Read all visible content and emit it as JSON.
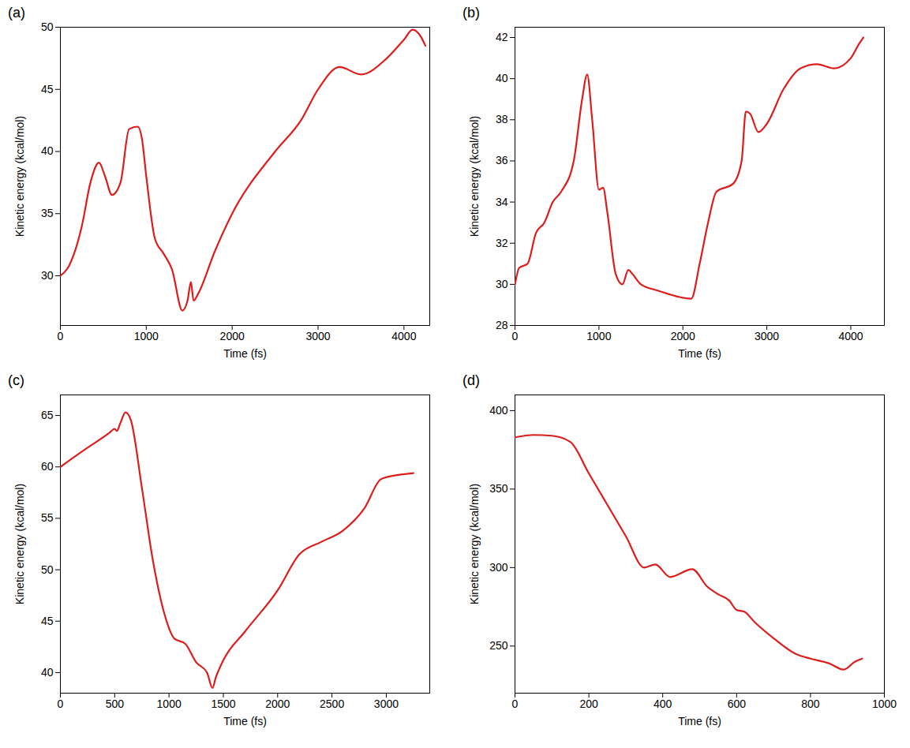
{
  "chart_data": [
    {
      "type": "line",
      "title": "(a)",
      "x_label": "Time (fs)",
      "y_label": "Kinetic energy (kcal/mol)",
      "color": "#dd1c1c",
      "x": [
        0,
        100,
        250,
        350,
        450,
        520,
        600,
        700,
        800,
        900,
        950,
        1000,
        1100,
        1200,
        1300,
        1420,
        1480,
        1520,
        1550,
        1600,
        1800,
        2000,
        2500,
        2800,
        3000,
        3250,
        3500,
        3800,
        4000,
        4100,
        4200,
        4250
      ],
      "values": [
        30,
        30.8,
        34,
        37.5,
        39.1,
        38,
        36.5,
        37.5,
        41.8,
        42,
        41,
        38,
        33,
        31.8,
        30.5,
        27.2,
        28,
        29.5,
        28,
        28.5,
        32,
        35,
        40,
        42.5,
        45,
        46.8,
        46.2,
        47.5,
        49,
        49.8,
        49.2,
        48.5
      ],
      "xlim": [
        0,
        4300
      ],
      "xticks": [
        0,
        1000,
        2000,
        3000,
        4000
      ],
      "ylim": [
        26,
        50
      ],
      "yticks": [
        30,
        35,
        40,
        45,
        50
      ]
    },
    {
      "type": "line",
      "title": "(b)",
      "x_label": "Time (fs)",
      "y_label": "Kinetic energy (kcal/mol)",
      "color": "#dd1c1c",
      "x": [
        0,
        50,
        150,
        250,
        350,
        450,
        550,
        700,
        800,
        860,
        920,
        1000,
        1050,
        1100,
        1200,
        1280,
        1350,
        1400,
        1500,
        1700,
        2100,
        2200,
        2300,
        2400,
        2600,
        2700,
        2750,
        2800,
        2900,
        3000,
        3200,
        3400,
        3600,
        3800,
        4000,
        4100,
        4150
      ],
      "values": [
        30,
        30.8,
        31,
        32.5,
        33,
        34,
        34.5,
        36,
        39,
        40.2,
        38,
        34.6,
        34.7,
        33.5,
        30.5,
        30,
        30.7,
        30.5,
        30,
        29.7,
        29.3,
        31,
        33,
        34.5,
        34.9,
        36,
        38.4,
        38.3,
        37.4,
        37.8,
        39.5,
        40.5,
        40.7,
        40.5,
        41,
        41.7,
        42
      ],
      "xlim": [
        0,
        4400
      ],
      "xticks": [
        0,
        1000,
        2000,
        3000,
        4000
      ],
      "ylim": [
        28,
        42.5
      ],
      "yticks": [
        28,
        30,
        32,
        34,
        36,
        38,
        40,
        42
      ]
    },
    {
      "type": "line",
      "title": "(c)",
      "x_label": "Time (fs)",
      "y_label": "Kinetic energy (kcal/mol)",
      "color": "#dd1c1c",
      "x": [
        0,
        200,
        450,
        500,
        520,
        550,
        600,
        650,
        750,
        850,
        950,
        1050,
        1150,
        1250,
        1350,
        1400,
        1430,
        1500,
        1700,
        2000,
        2200,
        2400,
        2600,
        2800,
        2950,
        3100,
        3250
      ],
      "values": [
        60,
        61.5,
        63.3,
        63.7,
        63.5,
        64.2,
        65.3,
        64.5,
        58,
        51,
        46,
        43.3,
        42.8,
        41,
        40,
        38.5,
        39.5,
        41.2,
        44,
        48,
        51.5,
        52.7,
        53.8,
        56,
        58.8,
        59.2,
        59.4
      ],
      "xlim": [
        0,
        3400
      ],
      "xticks": [
        0,
        500,
        1000,
        1500,
        2000,
        2500,
        3000
      ],
      "ylim": [
        38,
        67
      ],
      "yticks": [
        40,
        45,
        50,
        55,
        60,
        65
      ]
    },
    {
      "type": "line",
      "title": "(d)",
      "x_label": "Time (fs)",
      "y_label": "Kinetic energy (kcal/mol)",
      "color": "#dd1c1c",
      "x": [
        0,
        50,
        100,
        150,
        200,
        250,
        300,
        350,
        380,
        420,
        480,
        520,
        550,
        580,
        600,
        620,
        650,
        700,
        760,
        800,
        850,
        890,
        920,
        940
      ],
      "values": [
        383,
        384.5,
        384,
        380,
        360,
        340,
        320,
        300,
        302,
        294,
        299,
        288,
        283,
        279,
        273,
        272,
        265,
        255,
        245,
        242,
        239,
        235,
        240,
        242
      ],
      "xlim": [
        0,
        1000
      ],
      "xticks": [
        0,
        200,
        400,
        600,
        800,
        1000
      ],
      "ylim": [
        220,
        410
      ],
      "yticks": [
        250,
        300,
        350,
        400
      ]
    }
  ]
}
